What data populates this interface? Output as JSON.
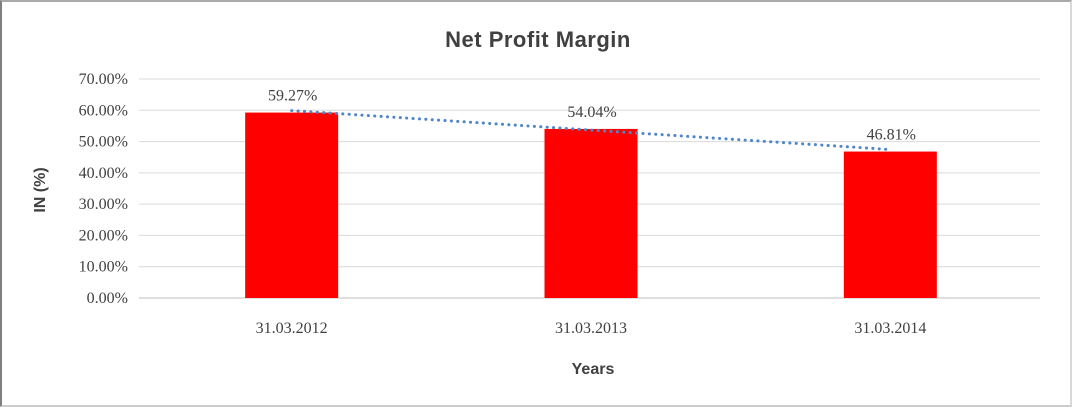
{
  "chart_data": {
    "type": "bar",
    "title": "Net Profit Margin",
    "xlabel": "Years",
    "ylabel": "IN (%)",
    "categories": [
      "31.03.2012",
      "31.03.2013",
      "31.03.2014"
    ],
    "values": [
      59.27,
      54.04,
      46.81
    ],
    "data_labels": [
      "59.27%",
      "54.04%",
      "46.81%"
    ],
    "y_ticks": [
      {
        "value": 0,
        "label": "0.00%"
      },
      {
        "value": 10,
        "label": "10.00%"
      },
      {
        "value": 20,
        "label": "20.00%"
      },
      {
        "value": 30,
        "label": "30.00%"
      },
      {
        "value": 40,
        "label": "40.00%"
      },
      {
        "value": 50,
        "label": "50.00%"
      },
      {
        "value": 60,
        "label": "60.00%"
      },
      {
        "value": 70,
        "label": "70.00%"
      }
    ],
    "ylim": [
      0,
      70
    ],
    "grid": true,
    "legend": "none",
    "trendline": {
      "kind": "linear",
      "style": "dotted",
      "start_value": 59.27,
      "end_value": 46.81
    },
    "colors": {
      "bar": "#FF0000",
      "trendline": "#4E86C8",
      "gridline": "#D9D9D9",
      "axis_line": "#BFBFBF",
      "text": "#404040"
    }
  }
}
